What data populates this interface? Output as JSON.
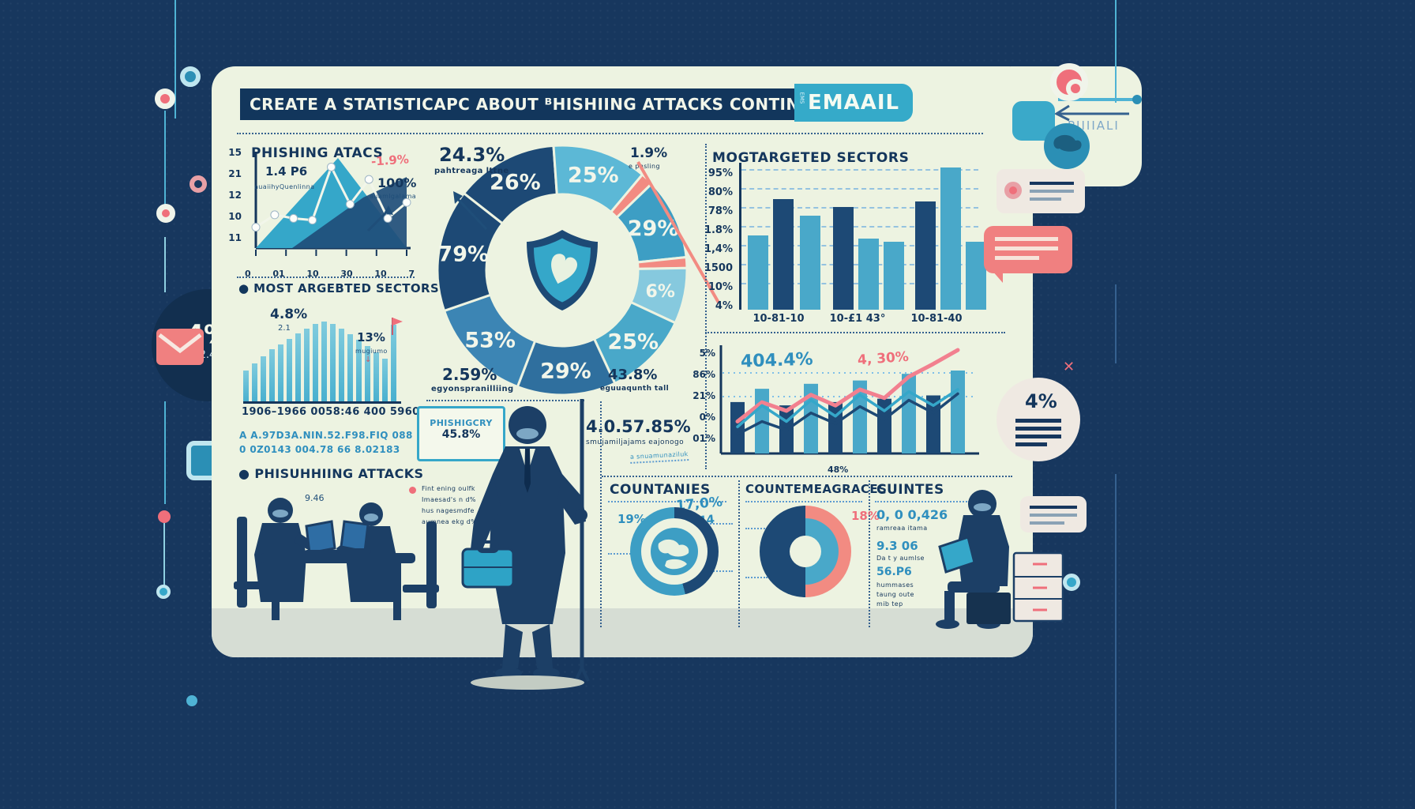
{
  "colors": {
    "bg_navy": "#17375e",
    "panel_cream": "#edf3e1",
    "accent_teal": "#35a7c9",
    "accent_pink": "#f28b82",
    "deep_navy": "#1d4975",
    "steel_blue": "#3c85b4",
    "hand_blue": "#2f8fbe",
    "floor_grey": "#d6ddd4"
  },
  "header": {
    "title": "CREATE A STATISTICAPC ABOUT ᴮHISHIING ATTACKS CONTING VIVI",
    "badge": "EMAAIL",
    "badge_side": "EMS",
    "arrow_label": "PIIIIALI"
  },
  "trend_chart": {
    "title": "PHISHING ATACS",
    "subtitle": "1.4 P6",
    "note": "auaiihyQuenlinna",
    "annotation_pct": "-1.9%",
    "annotation_big": "100%",
    "annotation_note": "auamlgalama"
  },
  "sectors_left": {
    "header": "MOST ARGEBTED SECTORS",
    "stat": "4.8%",
    "stat_sub": "2.1",
    "flag_pct": "13%",
    "flag_note": "mugiumo",
    "axis_text": "1906–1966 0058:46 400 5960",
    "code_line1": "A A.97D3A.NIN.52.F98.FIQ 088",
    "code_line2": "0 0Z0143 004.78 66 8.02183"
  },
  "phishing_attacks": {
    "header": "PHISUHHIING ATTACKS",
    "stat": "9.46",
    "note_line1": "Fint ening oulfk",
    "note_line2": "Imaesad's n d%",
    "note_line3": "hus nagesmdfe",
    "note_line4": "aumnea ekg d%s"
  },
  "donut_labels": {
    "callout_tl": "24.3%",
    "callout_tl_note": "pahtreaga lttne",
    "callout_tr": "1.9%",
    "callout_tr_note": "e phsling",
    "callout_bl": "2.59%",
    "callout_bl_note": "egyonspranilliing",
    "callout_br": "43.8%",
    "callout_br_note": "eguuaqunth tall",
    "box_line1": "PHISHIGCRY",
    "box_line2": "45.8%",
    "big_stat": "4.0.57.85%",
    "big_stat_note": "smujamiljajams eajonogo",
    "dotted_note": "a snuamunaziluk"
  },
  "sectors_right": {
    "header": "MOGTARGETED SECTORS"
  },
  "combo_labels": {
    "annotation_blue": "404.4%",
    "annotation_pink": "4, 30%",
    "x_label": "48%"
  },
  "countries": {
    "header": "COUNTANIES",
    "left_pct": "19%",
    "hand1": "17,0%",
    "hand2": "1.44"
  },
  "countermeasures": {
    "header": "COUNTEMEAGRACES",
    "pct": "18%"
  },
  "counties": {
    "header": "CUINTES",
    "row1": "0, 0 0,426",
    "row1_note": "ramreaa itama",
    "row2": "9.3 06",
    "row2_note": "Da t y aumlse",
    "row3": "56.P6",
    "row3_note1": "hummases",
    "row3_note2": "taung oute",
    "row3_note3": "mib tep"
  },
  "badges": {
    "left_circle_pct": "4%",
    "left_circle_sub": "2.4",
    "right_circle_pct": "4%",
    "x_mark": "✕"
  },
  "chart_data": [
    {
      "id": "trend",
      "type": "area",
      "title": "PHISHING ATACS",
      "y_ticks": [
        "15",
        "21",
        "12",
        "10",
        "11"
      ],
      "x_ticks": [
        "0",
        "01",
        "10",
        "30",
        "10",
        "7"
      ],
      "line_values": [
        20,
        34,
        30,
        28,
        88,
        46,
        74,
        30,
        48
      ],
      "note": "white line with dot markers over two mountain areas"
    },
    {
      "id": "mini_bars",
      "type": "bar",
      "values": [
        34,
        42,
        50,
        57,
        63,
        69,
        75,
        80,
        85,
        88,
        85,
        80,
        74,
        68,
        61,
        54,
        47,
        84
      ],
      "bar_color": "#49b0cf",
      "xlabel": "1906–1966 0058:46 400 5960"
    },
    {
      "id": "sectors_bars",
      "type": "bar",
      "title": "MOGTARGETED SECTORS",
      "y_ticks": [
        "95%",
        "80%",
        "78%",
        "1.8%",
        "1,4%",
        "1500",
        "10%",
        "4%"
      ],
      "categories": [
        "10-81-10",
        "10-£1 43°",
        "10-81-40"
      ],
      "bars": [
        {
          "value": 52,
          "color": "teal"
        },
        {
          "value": 78,
          "color": "navy"
        },
        {
          "value": 66,
          "color": "teal"
        },
        {
          "value": 72,
          "color": "navy"
        },
        {
          "value": 50,
          "color": "teal"
        },
        {
          "value": 48,
          "color": "teal"
        },
        {
          "value": 76,
          "color": "navy"
        },
        {
          "value": 100,
          "color": "teal"
        },
        {
          "value": 48,
          "color": "teal"
        }
      ]
    },
    {
      "id": "donut",
      "type": "pie",
      "start_angle": -52,
      "slices": [
        {
          "label": "26%",
          "sweep": 48,
          "color": "#1d4975"
        },
        {
          "label": "25%",
          "sweep": 44,
          "color": "#5cb8d6"
        },
        {
          "label": "",
          "sweep": 6,
          "color": "#f28b82"
        },
        {
          "label": "29%",
          "sweep": 38,
          "color": "#3d9ec4"
        },
        {
          "label": "",
          "sweep": 5,
          "color": "#f28b82"
        },
        {
          "label": "6%",
          "sweep": 26,
          "color": "#86c9de"
        },
        {
          "label": "25%",
          "sweep": 40,
          "color": "#49a8c9"
        },
        {
          "label": "29%",
          "sweep": 46,
          "color": "#2f6f9e"
        },
        {
          "label": "53%",
          "sweep": 50,
          "color": "#3c85b4"
        },
        {
          "label": "79%",
          "sweep": 57,
          "color": "#1d4975"
        }
      ]
    },
    {
      "id": "combo",
      "type": "bar+line",
      "y_ticks": [
        "5%",
        "86%",
        "21%",
        "0%",
        "01%"
      ],
      "x_label": "48%",
      "bar_values": [
        62,
        78,
        58,
        84,
        62,
        88,
        66,
        96,
        70,
        100
      ],
      "series": [
        {
          "name": "pink",
          "color": "#f2808f",
          "values": [
            30,
            48,
            40,
            55,
            45,
            60,
            52,
            72,
            84,
            97
          ]
        },
        {
          "name": "teal",
          "color": "#35a7c9",
          "values": [
            25,
            45,
            30,
            50,
            35,
            55,
            40,
            58,
            45,
            60
          ]
        },
        {
          "name": "navy",
          "color": "#1d4975",
          "values": [
            18,
            30,
            22,
            38,
            28,
            44,
            32,
            50,
            38,
            56
          ]
        }
      ]
    },
    {
      "id": "countries_donut",
      "type": "pie",
      "values": [
        {
          "label": "navy",
          "value": 46,
          "color": "#1d4975"
        },
        {
          "label": "teal",
          "value": 54,
          "color": "#3d9ec4"
        }
      ],
      "center": "globe"
    },
    {
      "id": "cm_donut",
      "type": "pie",
      "values": [
        {
          "label": "navy",
          "value": 50,
          "color": "#1d4975"
        },
        {
          "label": "pink",
          "value": 50,
          "color": "#f28b82"
        }
      ],
      "inner_color": "#49a8c9"
    }
  ]
}
